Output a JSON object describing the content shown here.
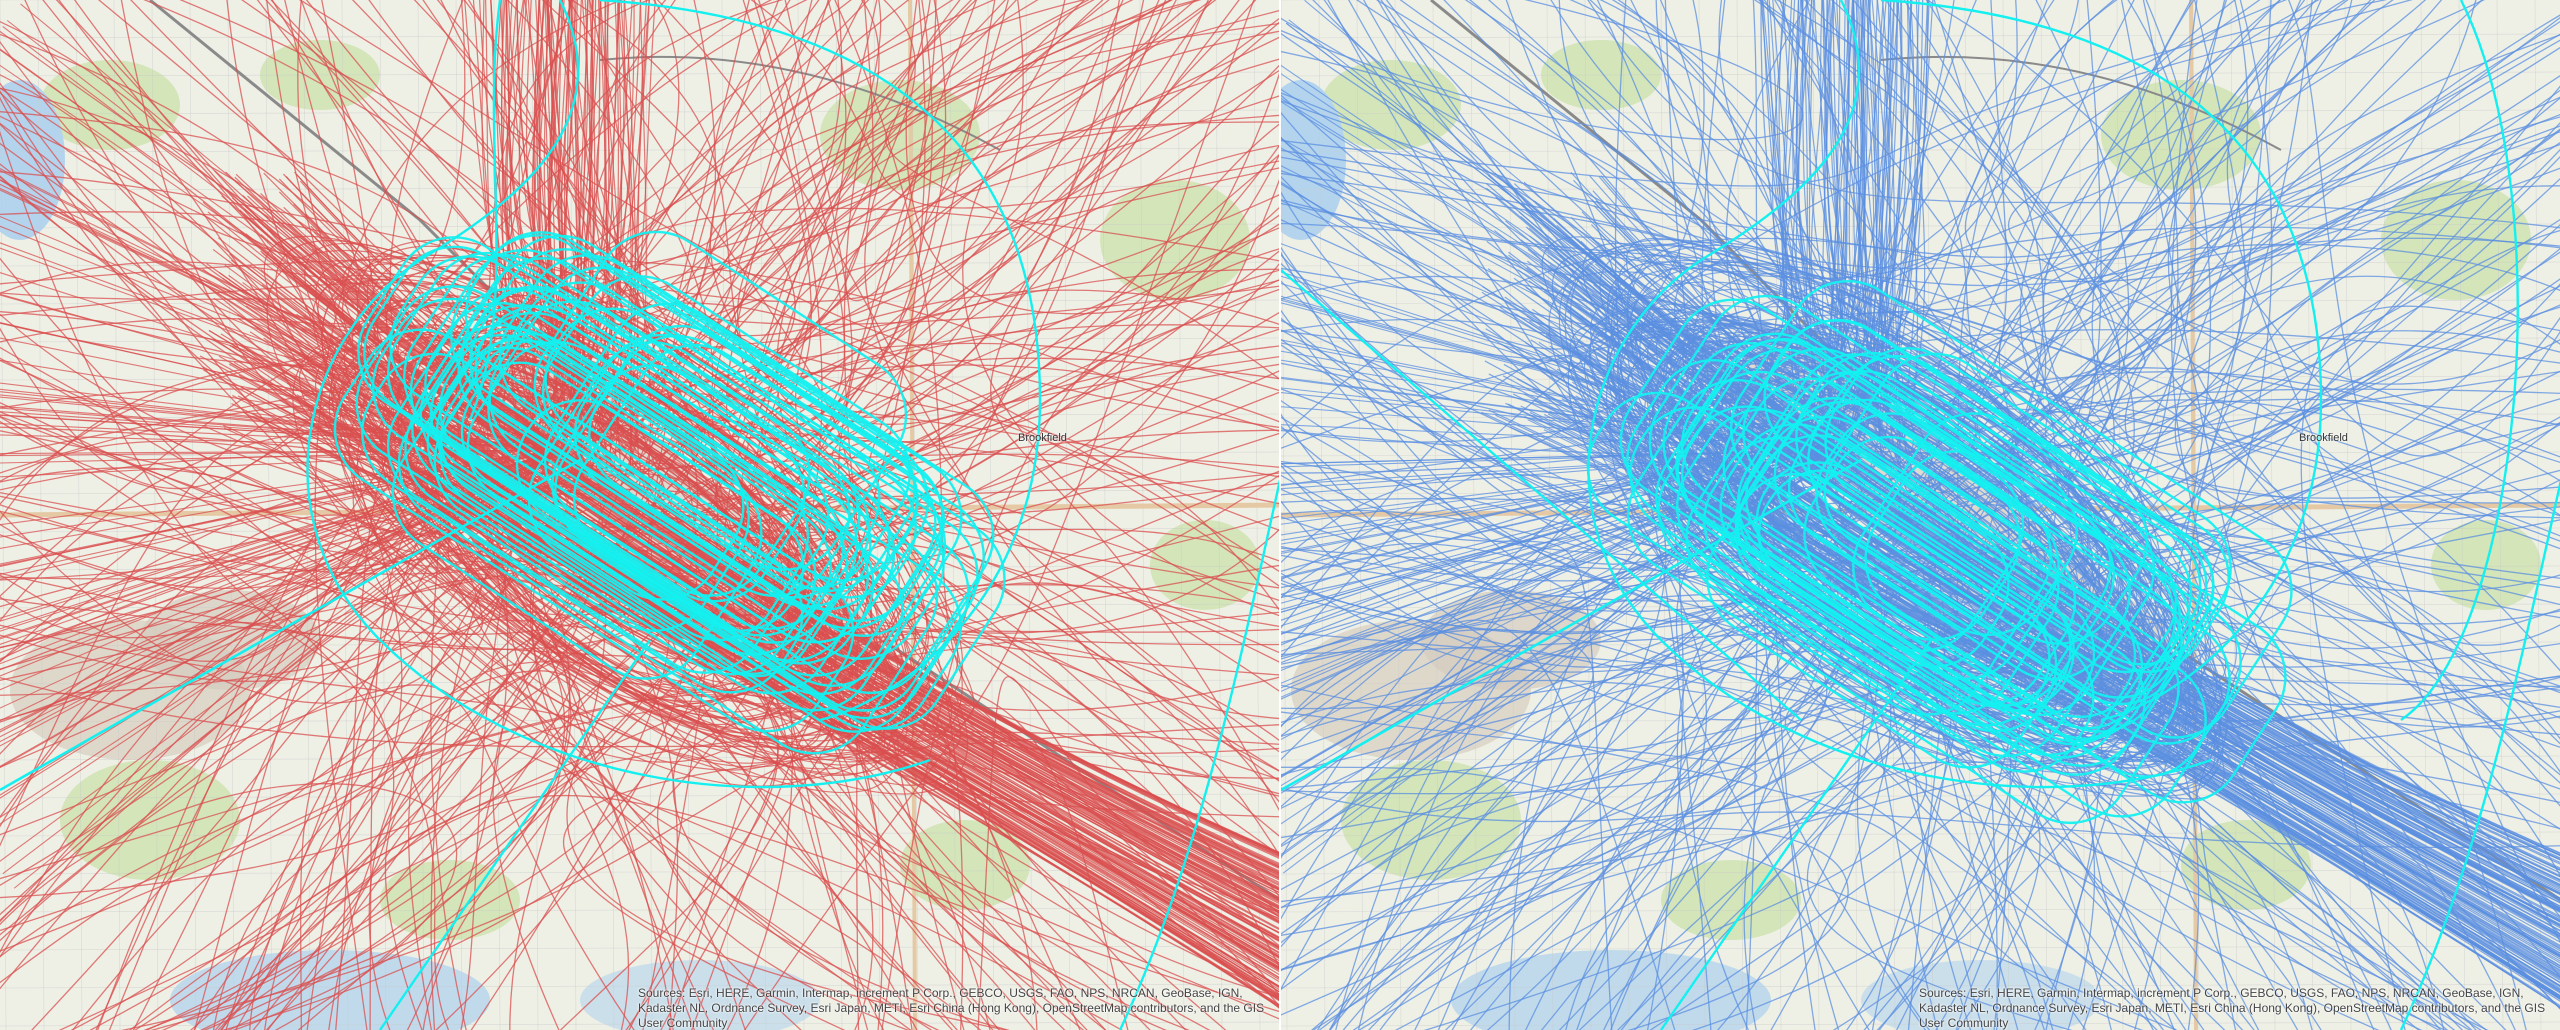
{
  "panels": [
    {
      "id": "left",
      "track_color": "#d94f4f",
      "highlight_color": "#14f0f0",
      "place_label": "Brookfield",
      "attribution": "Sources: Esri, HERE, Garmin, Intermap, increment P Corp., GEBCO, USGS, FAO, NPS, NRCAN, GeoBase, IGN, Kadaster NL, Ordnance Survey, Esri Japan, METI, Esri China (Hong Kong), OpenStreetMap contributors, and the GIS User Community"
    },
    {
      "id": "right",
      "track_color": "#5b8fe0",
      "highlight_color": "#14f0f0",
      "place_label": "Brookfield",
      "attribution": "Sources: Esri, HERE, Garmin, Intermap, increment P Corp., GEBCO, USGS, FAO, NPS, NRCAN, GeoBase, IGN, Kadaster NL, Ordnance Survey, Esri Japan, METI, Esri China (Hong Kong), OpenStreetMap contributors, and the GIS User Community"
    }
  ],
  "basemap_colors": {
    "land": "#eef0e6",
    "park": "#cfe3b4",
    "water": "#b4d4ee",
    "road": "#e4c9a4",
    "grid": "#c9c9c9"
  }
}
